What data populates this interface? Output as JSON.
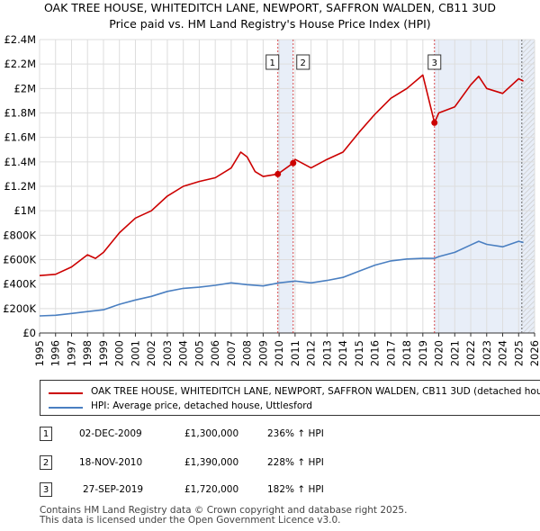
{
  "chart_data": {
    "type": "line",
    "title": "OAK TREE HOUSE, WHITEDITCH LANE, NEWPORT, SAFFRON WALDEN, CB11 3UD",
    "subtitle": "Price paid vs. HM Land Registry's House Price Index (HPI)",
    "x_ticks": [
      "1995",
      "1996",
      "1997",
      "1998",
      "1999",
      "2000",
      "2001",
      "2002",
      "2003",
      "2004",
      "2005",
      "2006",
      "2007",
      "2008",
      "2009",
      "2010",
      "2011",
      "2012",
      "2013",
      "2014",
      "2015",
      "2016",
      "2017",
      "2018",
      "2019",
      "2020",
      "2021",
      "2022",
      "2023",
      "2024",
      "2025",
      "2026"
    ],
    "y_ticks": [
      "£0",
      "£200K",
      "£400K",
      "£600K",
      "£800K",
      "£1M",
      "£1.2M",
      "£1.4M",
      "£1.6M",
      "£1.8M",
      "£2M",
      "£2.2M",
      "£2.4M"
    ],
    "xlim": [
      1995,
      2026
    ],
    "ylim": [
      0,
      2400000
    ],
    "series": [
      {
        "name": "OAK TREE HOUSE, WHITEDITCH LANE, NEWPORT, SAFFRON WALDEN, CB11 3UD (detached house)",
        "color": "#cc0000",
        "x": [
          1995,
          1996,
          1997,
          1998,
          1998.5,
          1999,
          2000,
          2001,
          2002,
          2003,
          2004,
          2005,
          2006,
          2007,
          2007.6,
          2008,
          2008.5,
          2009,
          2009.92,
          2010.88,
          2011,
          2012,
          2013,
          2014,
          2015,
          2016,
          2017,
          2018,
          2019,
          2019.73,
          2020,
          2021,
          2022,
          2022.5,
          2023,
          2024,
          2025,
          2025.3
        ],
        "values": [
          470000,
          480000,
          540000,
          640000,
          610000,
          660000,
          820000,
          940000,
          1000000,
          1120000,
          1200000,
          1240000,
          1270000,
          1350000,
          1480000,
          1440000,
          1320000,
          1280000,
          1300000,
          1390000,
          1420000,
          1350000,
          1420000,
          1480000,
          1640000,
          1790000,
          1920000,
          2000000,
          2110000,
          1720000,
          1800000,
          1850000,
          2030000,
          2100000,
          2000000,
          1960000,
          2080000,
          2060000
        ]
      },
      {
        "name": "HPI: Average price, detached house, Uttlesford",
        "color": "#4a7fc1",
        "x": [
          1995,
          1996,
          1997,
          1998,
          1999,
          2000,
          2001,
          2002,
          2003,
          2004,
          2005,
          2006,
          2007,
          2008,
          2009,
          2010,
          2011,
          2012,
          2013,
          2014,
          2015,
          2016,
          2017,
          2018,
          2019,
          2019.73,
          2020,
          2021,
          2022,
          2022.5,
          2023,
          2024,
          2025,
          2025.3
        ],
        "values": [
          140000,
          145000,
          160000,
          175000,
          190000,
          235000,
          270000,
          300000,
          340000,
          365000,
          375000,
          390000,
          410000,
          395000,
          385000,
          410000,
          425000,
          410000,
          430000,
          455000,
          505000,
          555000,
          590000,
          605000,
          610000,
          610000,
          625000,
          660000,
          720000,
          750000,
          725000,
          705000,
          750000,
          740000
        ]
      }
    ],
    "sales": [
      {
        "label": "1",
        "date": "02-DEC-2009",
        "price": "£1,300,000",
        "hpi": "236% ↑ HPI",
        "x": 2009.92,
        "value": 1300000
      },
      {
        "label": "2",
        "date": "18-NOV-2010",
        "price": "£1,390,000",
        "hpi": "228% ↑ HPI",
        "x": 2010.88,
        "value": 1390000
      },
      {
        "label": "3",
        "date": "27-SEP-2019",
        "price": "£1,720,000",
        "hpi": "182% ↑ HPI",
        "x": 2019.73,
        "value": 1720000
      }
    ],
    "projection_from": 2025.2,
    "legend": [
      "OAK TREE HOUSE, WHITEDITCH LANE, NEWPORT, SAFFRON WALDEN, CB11 3UD (detached house)",
      "HPI: Average price, detached house, Uttlesford"
    ]
  },
  "footer": {
    "line1": "Contains HM Land Registry data © Crown copyright and database right 2025.",
    "line2": "This data is licensed under the Open Government Licence v3.0."
  }
}
